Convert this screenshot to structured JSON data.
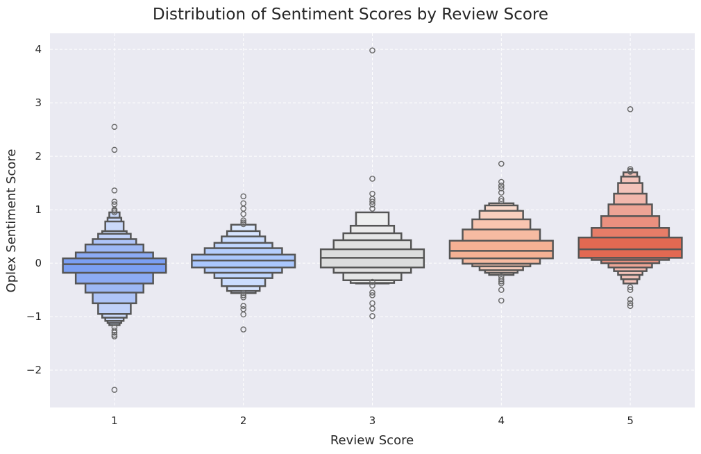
{
  "chart_data": {
    "type": "boxen",
    "title": "Distribution of Sentiment Scores by Review Score",
    "xlabel": "Review Score",
    "ylabel": "Oplex Sentiment Score",
    "categories": [
      "1",
      "2",
      "3",
      "4",
      "5"
    ],
    "ylim": [
      -2.7,
      4.3
    ],
    "yticks": [
      -2,
      -1,
      0,
      1,
      2,
      3,
      4
    ],
    "ytick_labels": [
      "−2",
      "−1",
      "0",
      "1",
      "2",
      "3",
      "4"
    ],
    "grid": true,
    "background": "#eaeaf2",
    "colors": [
      "#7b9ff2",
      "#aac7fd",
      "#dcdddd",
      "#f5b194",
      "#e26952"
    ],
    "series": [
      {
        "median": -0.02,
        "boxes": [
          {
            "lo": -0.18,
            "hi": 0.09
          },
          {
            "lo": -0.38,
            "hi": 0.2
          },
          {
            "lo": -0.55,
            "hi": 0.35
          },
          {
            "lo": -0.75,
            "hi": 0.45
          },
          {
            "lo": -0.95,
            "hi": 0.55
          },
          {
            "lo": -1.02,
            "hi": 0.6
          },
          {
            "lo": -1.08,
            "hi": 0.78
          },
          {
            "lo": -1.12,
            "hi": 0.85
          },
          {
            "lo": -1.16,
            "hi": 0.95
          }
        ],
        "outliers": [
          2.55,
          2.12,
          1.36,
          1.15,
          1.1,
          1.0,
          0.98,
          0.95,
          -1.2,
          -1.26,
          -1.3,
          -1.34,
          -1.37,
          -2.37
        ]
      },
      {
        "median": 0.05,
        "boxes": [
          {
            "lo": -0.08,
            "hi": 0.16
          },
          {
            "lo": -0.18,
            "hi": 0.28
          },
          {
            "lo": -0.28,
            "hi": 0.38
          },
          {
            "lo": -0.43,
            "hi": 0.5
          },
          {
            "lo": -0.52,
            "hi": 0.6
          },
          {
            "lo": -0.56,
            "hi": 0.72
          }
        ],
        "outliers": [
          1.25,
          1.12,
          1.02,
          0.92,
          0.8,
          0.76,
          0.73,
          -0.56,
          -0.6,
          -0.64,
          -0.8,
          -0.86,
          -0.96,
          -1.24
        ]
      },
      {
        "median": 0.1,
        "boxes": [
          {
            "lo": -0.08,
            "hi": 0.26
          },
          {
            "lo": -0.18,
            "hi": 0.43
          },
          {
            "lo": -0.32,
            "hi": 0.56
          },
          {
            "lo": -0.37,
            "hi": 0.7
          },
          {
            "lo": -0.38,
            "hi": 0.95
          }
        ],
        "outliers": [
          3.98,
          1.58,
          1.3,
          1.2,
          1.15,
          1.1,
          1.02,
          -0.35,
          -0.42,
          -0.55,
          -0.6,
          -0.75,
          -0.85,
          -0.99
        ]
      },
      {
        "median": 0.23,
        "boxes": [
          {
            "lo": 0.09,
            "hi": 0.42
          },
          {
            "lo": -0.01,
            "hi": 0.63
          },
          {
            "lo": -0.06,
            "hi": 0.82
          },
          {
            "lo": -0.13,
            "hi": 0.98
          },
          {
            "lo": -0.18,
            "hi": 1.08
          },
          {
            "lo": -0.22,
            "hi": 1.12
          }
        ],
        "outliers": [
          1.86,
          1.52,
          1.45,
          1.4,
          1.32,
          1.2,
          1.16,
          -0.25,
          -0.3,
          -0.34,
          -0.38,
          -0.5,
          -0.7
        ]
      },
      {
        "median": 0.26,
        "boxes": [
          {
            "lo": 0.1,
            "hi": 0.48
          },
          {
            "lo": 0.06,
            "hi": 0.66
          },
          {
            "lo": 0.0,
            "hi": 0.88
          },
          {
            "lo": -0.08,
            "hi": 1.1
          },
          {
            "lo": -0.15,
            "hi": 1.3
          },
          {
            "lo": -0.22,
            "hi": 1.5
          },
          {
            "lo": -0.3,
            "hi": 1.62
          },
          {
            "lo": -0.38,
            "hi": 1.7
          }
        ],
        "outliers": [
          2.88,
          1.76,
          1.73,
          1.71,
          -0.45,
          -0.5,
          -0.68,
          -0.75,
          -0.8
        ]
      }
    ]
  }
}
